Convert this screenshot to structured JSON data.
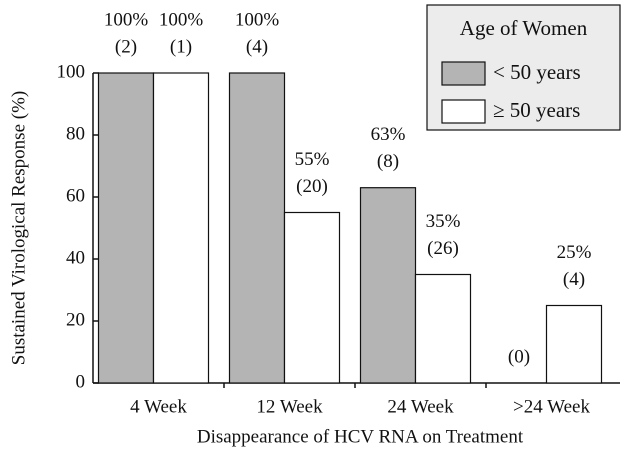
{
  "chart_data": {
    "type": "bar",
    "x_label": "Disappearance of HCV RNA on Treatment",
    "y_label": "Sustained Virological Response (%)",
    "categories": [
      "4 Week",
      "12 Week",
      "24 Week",
      ">24 Week"
    ],
    "series": [
      {
        "name": "< 50 years",
        "color": "#b4b4b4",
        "values": [
          100,
          100,
          63,
          0
        ],
        "value_labels": [
          "100%",
          "100%",
          "63%",
          null
        ],
        "count_labels": [
          "(2)",
          "(4)",
          "(8)",
          "(0)"
        ]
      },
      {
        "name": "≥ 50 years",
        "color": "#ffffff",
        "values": [
          100,
          55,
          35,
          25
        ],
        "value_labels": [
          "100%",
          "55%",
          "35%",
          "25%"
        ],
        "count_labels": [
          "(1)",
          "(20)",
          "(26)",
          "(4)"
        ]
      }
    ],
    "legend_title": "Age of Women",
    "legend": "upper right",
    "grid": false,
    "ylim": [
      0,
      100
    ],
    "yticks": [
      0,
      20,
      40,
      60,
      80,
      100
    ]
  }
}
